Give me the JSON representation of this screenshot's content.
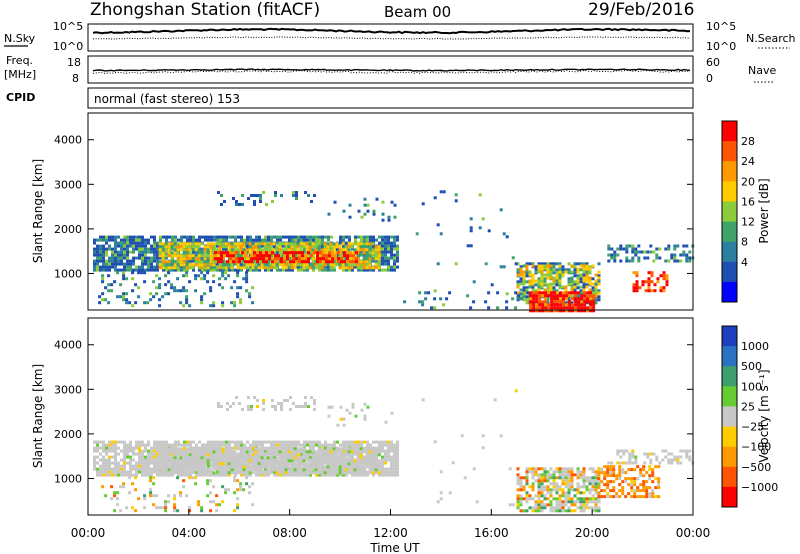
{
  "header": {
    "station": "Zhongshan Station (fitACF)",
    "beam": "Beam 00",
    "date": "29/Feb/2016"
  },
  "top_panels": {
    "nsky": {
      "label": "N.Sky",
      "tick_hi": "10^5",
      "tick_lo": "10^0"
    },
    "nsearch": {
      "label": "N.Search",
      "tick_hi": "10^5",
      "tick_lo": "10^0"
    },
    "freq": {
      "label_line1": "Freq.",
      "label_line2": "[MHz]",
      "tick_hi": "18",
      "tick_lo": "8"
    },
    "nave": {
      "label": "Nave",
      "tick_hi": "60",
      "tick_lo": "0"
    },
    "cpid": {
      "label": "CPID",
      "value": "normal (fast stereo) 153"
    }
  },
  "chart_data": [
    {
      "type": "heatmap",
      "name": "power",
      "xlabel": "Time UT",
      "ylabel": "Slant Range [km]",
      "x_range_hours": [
        0,
        24
      ],
      "ylim": [
        180,
        4600
      ],
      "yticks": [
        "1000",
        "2000",
        "3000",
        "4000"
      ],
      "colorbar": {
        "label": "Power [dB]",
        "ticks": [
          "28",
          "24",
          "20",
          "16",
          "12",
          "8",
          "4"
        ],
        "colors": [
          "#ff0000",
          "#ff5500",
          "#ff9900",
          "#ffcc00",
          "#8ccc3a",
          "#3fa36a",
          "#2c7f9e",
          "#1f4fb0",
          "#0000ff"
        ]
      },
      "regions": [
        {
          "t0": 0.2,
          "t1": 12.3,
          "r0": 1050,
          "r1": 1850,
          "level": "low",
          "density": 0.85
        },
        {
          "t0": 2.8,
          "t1": 11.6,
          "r0": 1150,
          "r1": 1700,
          "level": "mid",
          "density": 0.85
        },
        {
          "t0": 5.0,
          "t1": 10.6,
          "r0": 1250,
          "r1": 1500,
          "level": "high",
          "density": 0.7
        },
        {
          "t0": 0.4,
          "t1": 6.5,
          "r0": 250,
          "r1": 1050,
          "level": "low",
          "density": 0.2
        },
        {
          "t0": 9.5,
          "t1": 12.3,
          "r0": 2200,
          "r1": 2700,
          "level": "low",
          "density": 0.08
        },
        {
          "t0": 5.0,
          "t1": 9.0,
          "r0": 2550,
          "r1": 2850,
          "level": "low",
          "density": 0.25
        },
        {
          "t0": 17.0,
          "t1": 20.3,
          "r0": 350,
          "r1": 1250,
          "level": "low",
          "density": 0.6
        },
        {
          "t0": 17.0,
          "t1": 20.3,
          "r0": 500,
          "r1": 1200,
          "level": "mid",
          "density": 0.45
        },
        {
          "t0": 17.5,
          "t1": 20.0,
          "r0": 180,
          "r1": 600,
          "level": "high",
          "density": 0.95
        },
        {
          "t0": 21.6,
          "t1": 23.0,
          "r0": 600,
          "r1": 1050,
          "level": "high",
          "density": 0.5
        },
        {
          "t0": 20.6,
          "t1": 24.0,
          "r0": 1300,
          "r1": 1650,
          "level": "low",
          "density": 0.5
        },
        {
          "t0": 13.0,
          "t1": 17.0,
          "r0": 400,
          "r1": 3000,
          "level": "low",
          "density": 0.02
        },
        {
          "t0": 12.5,
          "t1": 17.5,
          "r0": 250,
          "r1": 600,
          "level": "low",
          "density": 0.08
        }
      ]
    },
    {
      "type": "heatmap",
      "name": "velocity",
      "xlabel": "Time UT",
      "ylabel": "Slant Range [km]",
      "x_range_hours": [
        0,
        24
      ],
      "ylim": [
        180,
        4600
      ],
      "yticks": [
        "1000",
        "2000",
        "3000",
        "4000"
      ],
      "colorbar": {
        "label": "Velocity [m s⁻¹]",
        "ticks": [
          "1000",
          "500",
          "100",
          "25",
          "−25",
          "−100",
          "−500",
          "−1000"
        ],
        "colors": [
          "#1f3fbf",
          "#2a72c2",
          "#3d9e6e",
          "#66cc33",
          "#c8c8c8",
          "#ffcc00",
          "#ff9900",
          "#ff5500",
          "#ff0000"
        ]
      },
      "regions": [
        {
          "t0": 0.2,
          "t1": 12.3,
          "r0": 1050,
          "r1": 1850,
          "level": "grey",
          "density": 0.85
        },
        {
          "t0": 2.8,
          "t1": 11.6,
          "r0": 1150,
          "r1": 1700,
          "level": "grey",
          "density": 0.9
        },
        {
          "t0": 0.4,
          "t1": 6.5,
          "r0": 250,
          "r1": 1050,
          "level": "mix",
          "density": 0.15
        },
        {
          "t0": 5.0,
          "t1": 9.0,
          "r0": 2550,
          "r1": 2850,
          "level": "grey",
          "density": 0.25
        },
        {
          "t0": 9.5,
          "t1": 12.3,
          "r0": 2200,
          "r1": 2700,
          "level": "grey",
          "density": 0.08
        },
        {
          "t0": 17.0,
          "t1": 20.3,
          "r0": 300,
          "r1": 1250,
          "level": "mix",
          "density": 0.7
        },
        {
          "t0": 20.2,
          "t1": 22.6,
          "r0": 600,
          "r1": 1300,
          "level": "orange",
          "density": 0.6
        },
        {
          "t0": 20.6,
          "t1": 24.0,
          "r0": 1350,
          "r1": 1650,
          "level": "grey",
          "density": 0.4
        },
        {
          "t0": 13.0,
          "t1": 17.0,
          "r0": 400,
          "r1": 3000,
          "level": "grey",
          "density": 0.02
        }
      ]
    }
  ],
  "x_axis": {
    "title": "Time UT",
    "ticks": [
      "00:00",
      "04:00",
      "08:00",
      "12:00",
      "16:00",
      "20:00",
      "00:00"
    ]
  }
}
